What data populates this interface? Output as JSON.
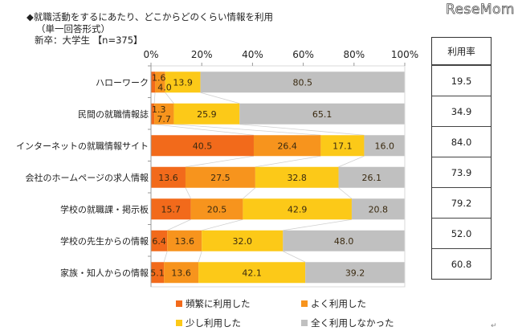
{
  "header": {
    "title": "◆就職活動をするにあたり、どこからどのくらい情報を利用",
    "subtitle": "（単一回答形式）",
    "sample": "新卒：大学生 【n=375】",
    "logo": "ReseMom"
  },
  "colors": {
    "frequent": "#f26a1b",
    "often": "#f7941d",
    "little": "#fcc918",
    "none": "#c0c0c0"
  },
  "chart_data": {
    "type": "bar",
    "orientation": "horizontal",
    "stacked": true,
    "percent": true,
    "title": "就職活動をするにあたり、どこからどのくらい情報を利用",
    "xlim": [
      0,
      100
    ],
    "xticks": [
      "0%",
      "20%",
      "40%",
      "60%",
      "80%",
      "100%"
    ],
    "categories": [
      "ハローワーク",
      "民間の就職情報誌",
      "インターネットの就職情報サイト",
      "会社のホームページの求人情報",
      "学校の就職課・掲示板",
      "学校の先生からの情報",
      "家族・知人からの情報"
    ],
    "series": [
      {
        "name": "頻繁に利用した",
        "color": "#f26a1b",
        "values": [
          1.6,
          1.3,
          40.5,
          13.6,
          15.7,
          6.4,
          5.1
        ]
      },
      {
        "name": "よく利用した",
        "color": "#f7941d",
        "values": [
          4.0,
          7.7,
          26.4,
          27.5,
          20.5,
          13.6,
          13.6
        ]
      },
      {
        "name": "少し利用した",
        "color": "#fcc918",
        "values": [
          13.9,
          25.9,
          17.1,
          32.8,
          42.9,
          32.0,
          42.1
        ]
      },
      {
        "name": "全く利用しなかった",
        "color": "#c0c0c0",
        "values": [
          80.5,
          65.1,
          16.0,
          26.1,
          20.8,
          48.0,
          39.2
        ]
      }
    ],
    "legend": "bottom"
  },
  "rate_table": {
    "header": "利用率",
    "values": [
      "19.5",
      "34.9",
      "84.0",
      "73.9",
      "79.2",
      "52.0",
      "60.8"
    ]
  },
  "legend": {
    "items": [
      "頻繁に利用した",
      "よく利用した",
      "少し利用した",
      "全く利用しなかった"
    ]
  },
  "return_mark": "↵"
}
